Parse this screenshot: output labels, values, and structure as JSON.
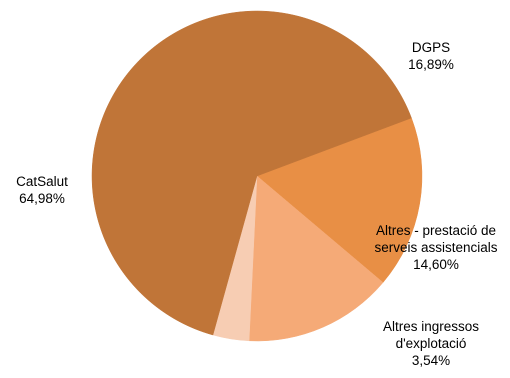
{
  "chart_data": {
    "type": "pie",
    "title": "",
    "legend": "none",
    "unit": "%",
    "slices": [
      {
        "label_lines": [
          "DGPS"
        ],
        "value_text": "16,89%",
        "value": 16.89,
        "color": "#E88F45"
      },
      {
        "label_lines": [
          "Altres - prestació de",
          "serveis assistencials"
        ],
        "value_text": "14,60%",
        "value": 14.6,
        "color": "#F5AA77"
      },
      {
        "label_lines": [
          "Altres ingressos",
          "d'explotació"
        ],
        "value_text": "3,54%",
        "value": 3.54,
        "color": "#F7CDB3"
      },
      {
        "label_lines": [
          "CatSalut"
        ],
        "value_text": "64,98%",
        "value": 64.98,
        "color": "#C07538"
      }
    ]
  }
}
